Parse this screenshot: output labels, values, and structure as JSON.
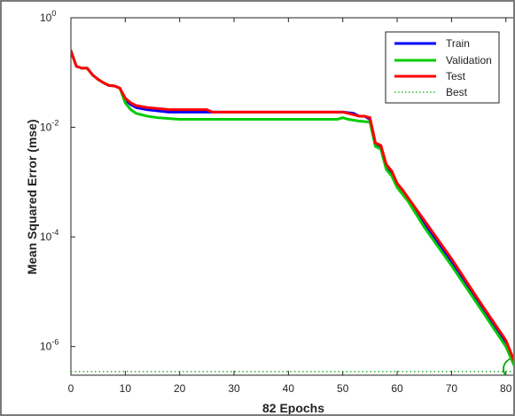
{
  "chart_data": {
    "type": "line",
    "title": "",
    "xlabel": "82 Epochs",
    "ylabel": "Mean Squared Error  (mse)",
    "xlim": [
      0,
      82
    ],
    "ylim": [
      3e-07,
      1
    ],
    "yscale": "log",
    "x_ticks": [
      0,
      10,
      20,
      30,
      40,
      50,
      60,
      70,
      80
    ],
    "y_ticks": [
      {
        "value": 1,
        "label_base": "10",
        "label_exp": "0"
      },
      {
        "value": 0.01,
        "label_base": "10",
        "label_exp": "-2"
      },
      {
        "value": 0.0001,
        "label_base": "10",
        "label_exp": "-4"
      },
      {
        "value": 1e-06,
        "label_base": "10",
        "label_exp": "-6"
      }
    ],
    "grid": false,
    "legend_position": "top-right",
    "series": [
      {
        "name": "Train",
        "color": "#0000ff",
        "style": "solid",
        "points": [
          [
            0,
            0.25
          ],
          [
            1,
            0.13
          ],
          [
            2,
            0.12
          ],
          [
            3,
            0.12
          ],
          [
            4,
            0.09
          ],
          [
            5,
            0.075
          ],
          [
            6,
            0.065
          ],
          [
            7,
            0.058
          ],
          [
            8,
            0.057
          ],
          [
            9,
            0.052
          ],
          [
            10,
            0.032
          ],
          [
            11,
            0.026
          ],
          [
            12,
            0.023
          ],
          [
            14,
            0.021
          ],
          [
            16,
            0.02
          ],
          [
            18,
            0.019
          ],
          [
            20,
            0.019
          ],
          [
            30,
            0.019
          ],
          [
            40,
            0.019
          ],
          [
            50,
            0.019
          ],
          [
            52,
            0.018
          ],
          [
            53,
            0.016
          ],
          [
            54,
            0.016
          ],
          [
            55,
            0.014
          ],
          [
            56,
            0.005
          ],
          [
            57,
            0.0045
          ],
          [
            58,
            0.002
          ],
          [
            59,
            0.0015
          ],
          [
            60,
            0.0009
          ],
          [
            61,
            0.0007
          ],
          [
            62,
            0.0005
          ],
          [
            65,
            0.00018
          ],
          [
            70,
            3.5e-05
          ],
          [
            75,
            6.5e-06
          ],
          [
            80,
            1.2e-06
          ],
          [
            82,
            4e-07
          ]
        ]
      },
      {
        "name": "Validation",
        "color": "#00cc00",
        "style": "solid",
        "points": [
          [
            0,
            0.25
          ],
          [
            1,
            0.13
          ],
          [
            2,
            0.12
          ],
          [
            3,
            0.12
          ],
          [
            4,
            0.09
          ],
          [
            5,
            0.075
          ],
          [
            6,
            0.065
          ],
          [
            7,
            0.058
          ],
          [
            8,
            0.057
          ],
          [
            9,
            0.052
          ],
          [
            10,
            0.028
          ],
          [
            11,
            0.021
          ],
          [
            12,
            0.018
          ],
          [
            14,
            0.016
          ],
          [
            16,
            0.015
          ],
          [
            18,
            0.0145
          ],
          [
            20,
            0.014
          ],
          [
            30,
            0.014
          ],
          [
            40,
            0.014
          ],
          [
            49,
            0.014
          ],
          [
            50,
            0.015
          ],
          [
            51,
            0.014
          ],
          [
            53,
            0.013
          ],
          [
            55,
            0.0125
          ],
          [
            56,
            0.0045
          ],
          [
            57,
            0.004
          ],
          [
            58,
            0.0017
          ],
          [
            59,
            0.0013
          ],
          [
            60,
            0.0008
          ],
          [
            61,
            0.0006
          ],
          [
            62,
            0.00045
          ],
          [
            65,
            0.00015
          ],
          [
            70,
            3e-05
          ],
          [
            75,
            5.5e-06
          ],
          [
            80,
            1e-06
          ],
          [
            82,
            3.5e-07
          ]
        ]
      },
      {
        "name": "Test",
        "color": "#ff0000",
        "style": "solid",
        "points": [
          [
            0,
            0.25
          ],
          [
            1,
            0.13
          ],
          [
            2,
            0.12
          ],
          [
            3,
            0.12
          ],
          [
            4,
            0.09
          ],
          [
            5,
            0.075
          ],
          [
            6,
            0.065
          ],
          [
            7,
            0.058
          ],
          [
            8,
            0.057
          ],
          [
            9,
            0.052
          ],
          [
            10,
            0.034
          ],
          [
            11,
            0.028
          ],
          [
            12,
            0.025
          ],
          [
            14,
            0.023
          ],
          [
            16,
            0.022
          ],
          [
            18,
            0.021
          ],
          [
            20,
            0.021
          ],
          [
            25,
            0.021
          ],
          [
            26,
            0.019
          ],
          [
            30,
            0.019
          ],
          [
            40,
            0.019
          ],
          [
            50,
            0.019
          ],
          [
            52,
            0.017
          ],
          [
            53,
            0.016
          ],
          [
            54,
            0.016
          ],
          [
            55,
            0.015
          ],
          [
            56,
            0.0052
          ],
          [
            57,
            0.0047
          ],
          [
            58,
            0.0021
          ],
          [
            59,
            0.0016
          ],
          [
            60,
            0.00095
          ],
          [
            61,
            0.00072
          ],
          [
            62,
            0.00052
          ],
          [
            65,
            0.0002
          ],
          [
            70,
            4e-05
          ],
          [
            75,
            7e-06
          ],
          [
            80,
            1.3e-06
          ],
          [
            82,
            4.2e-07
          ]
        ]
      }
    ],
    "best": {
      "name": "Best",
      "color": "#00aa00",
      "style": "dotted",
      "epoch": 82,
      "value": 3.5e-07
    }
  }
}
